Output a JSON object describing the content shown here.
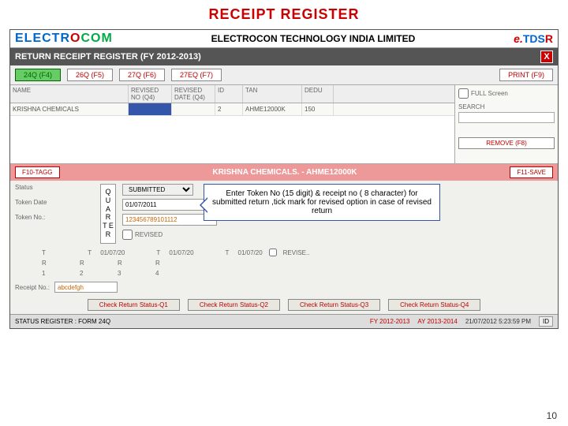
{
  "title": "RECEIPT REGISTER",
  "company": "ELECTROCON TECHNOLOGY INDIA LIMITED",
  "logo_left": {
    "p1": "ELECTR",
    "p2": "O",
    "p3": "COM"
  },
  "logo_right": {
    "e": "e.",
    "tds": "TDS",
    "r": "R"
  },
  "subheader": "RETURN RECEIPT REGISTER (FY 2012-2013)",
  "close": "X",
  "form_buttons": {
    "b1": "24Q (F4)",
    "b2": "26Q (F5)",
    "b3": "27Q (F6)",
    "b4": "27EQ (F7)",
    "print": "PRINT (F9)"
  },
  "grid": {
    "headers": {
      "h1": "NAME",
      "h2": "REVISED NO (Q4)",
      "h3": "REVISED DATE (Q4)",
      "h4": "ID",
      "h5": "TAN",
      "h6": "DEDU"
    },
    "row": {
      "c1": "KRISHNA CHEMICALS",
      "c2": "",
      "c3": "",
      "c4": "2",
      "c5": "AHME12000K",
      "c6": "150"
    }
  },
  "side": {
    "full_screen": "FULL Screen",
    "search": "SEARCH",
    "remove": "REMOVE (F8)"
  },
  "pink": {
    "left": "F10-TAGG",
    "title": "KRISHNA CHEMICALS. - AHME12000K",
    "right": "F11-SAVE"
  },
  "detail": {
    "labels": {
      "status": "Status",
      "token_date": "Token Date",
      "token_no": "Token No.:"
    },
    "quarter_box": "Q\nU\nA\nR\nT\nE\nR",
    "status_val": "SUBMITTED",
    "token_date_val": "01/07/2011",
    "token_no_val": "123456789101112",
    "revised": "REVISED"
  },
  "callout": "Enter Token No (15 digit) & receipt no ( 8 character) for submitted return ,tick mark for revised option in case of revised return",
  "quarters": {
    "r1": {
      "t": "T",
      "r": "R",
      "q1": "1",
      "q2": "2",
      "q3": "3",
      "q4": "4",
      "rev": "REVISE.."
    },
    "row_t_labels": {
      "a": "01/07/20",
      "b": "01/07/20",
      "c": "01/07/20"
    }
  },
  "receipt": {
    "label": "Receipt No.:",
    "val": "abcdefgh"
  },
  "status_btns": {
    "b1": "Check Return Status-Q1",
    "b2": "Check Return Status-Q2",
    "b3": "Check Return Status-Q3",
    "b4": "Check Return Status-Q4"
  },
  "footer": {
    "status": "STATUS REGISTER : FORM 24Q",
    "fy": "FY 2012-2013",
    "ay": "AY 2013-2014",
    "dt": "21/07/2012 5:23:59 PM",
    "id": "ID"
  },
  "page": "10"
}
